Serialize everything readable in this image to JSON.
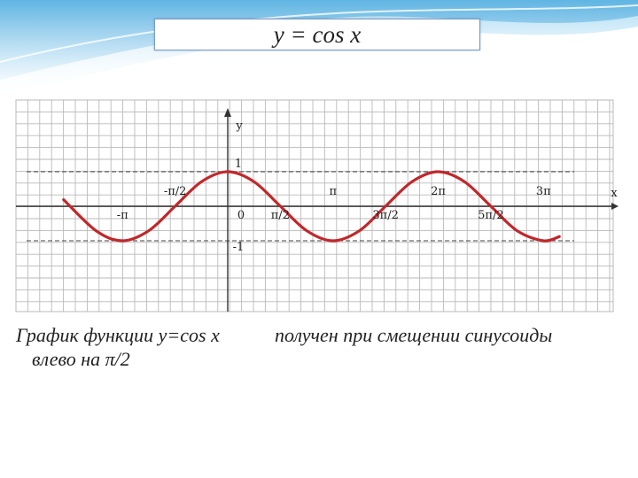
{
  "header": {
    "title": "y = cos x"
  },
  "caption": {
    "line1": "График функции y=cos x",
    "line2": "получен при смещении синусоиды",
    "line3": "влево на π/2"
  },
  "colors": {
    "curve": "#c0282b",
    "grid": "#b9b9b9",
    "axis": "#333333",
    "header_wave": "#3ba3d9"
  },
  "chart_data": {
    "type": "line",
    "function": "cos",
    "title": "",
    "xlabel": "x",
    "ylabel": "y",
    "xlim": [
      -3.9,
      9.7
    ],
    "ylim": [
      -1.5,
      1.5
    ],
    "grid": true,
    "guide_lines": [
      1,
      -1
    ],
    "x_ticks_above": [
      {
        "x": -1.5708,
        "label": "-π/2"
      },
      {
        "x": 3.1416,
        "label": "π"
      },
      {
        "x": 6.2832,
        "label": "2π"
      },
      {
        "x": 9.4248,
        "label": "3π"
      }
    ],
    "x_ticks_below": [
      {
        "x": -3.1416,
        "label": "-π"
      },
      {
        "x": 0,
        "label": "0"
      },
      {
        "x": 1.5708,
        "label": "π/2"
      },
      {
        "x": 4.7124,
        "label": "3π/2"
      },
      {
        "x": 7.854,
        "label": "5π/2"
      }
    ],
    "y_ticks": [
      {
        "y": 1,
        "label": "1"
      },
      {
        "y": -1,
        "label": "-1"
      }
    ],
    "series": [
      {
        "points": [
          [
            -4.9,
            0.19
          ],
          [
            -3.93,
            -0.71
          ],
          [
            -3.1416,
            -1
          ],
          [
            -2.36,
            -0.71
          ],
          [
            -1.5708,
            0
          ],
          [
            -0.785,
            0.71
          ],
          [
            0,
            1
          ],
          [
            0.785,
            0.71
          ],
          [
            1.5708,
            0
          ],
          [
            2.36,
            -0.71
          ],
          [
            3.1416,
            -1
          ],
          [
            3.93,
            -0.71
          ],
          [
            4.7124,
            0
          ],
          [
            5.5,
            0.71
          ],
          [
            6.2832,
            1
          ],
          [
            7.07,
            0.71
          ],
          [
            7.854,
            0
          ],
          [
            8.64,
            -0.71
          ],
          [
            9.4248,
            -1
          ],
          [
            9.9,
            -0.88
          ]
        ]
      }
    ]
  }
}
